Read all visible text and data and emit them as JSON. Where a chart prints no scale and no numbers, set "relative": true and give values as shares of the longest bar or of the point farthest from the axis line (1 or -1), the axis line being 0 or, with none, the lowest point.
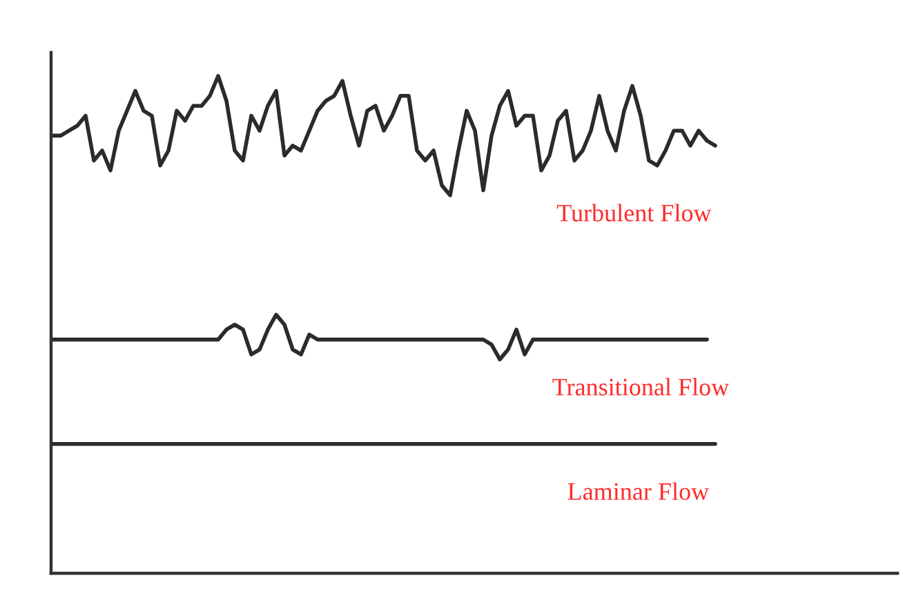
{
  "chart_data": {
    "type": "line",
    "relative": true,
    "marker": "none",
    "line_style": "solid",
    "categories": [
      null,
      null,
      null,
      null,
      null,
      null,
      null,
      null,
      null,
      null,
      null,
      null,
      null,
      null,
      null,
      null,
      null,
      null,
      null,
      null,
      null,
      null,
      null,
      null,
      null,
      null,
      null,
      null,
      null,
      null,
      null,
      null,
      null,
      null,
      null,
      null,
      null,
      null,
      null,
      null,
      null,
      null,
      null,
      null,
      null,
      null,
      null,
      null,
      null,
      null,
      null,
      null,
      null,
      null,
      null,
      null,
      null,
      null,
      null,
      null,
      null,
      null,
      null,
      null,
      null,
      null,
      null,
      null,
      null,
      null,
      null,
      null,
      null,
      null,
      null,
      null,
      null,
      null,
      null,
      null,
      null
    ],
    "series": [
      {
        "name": "Turbulent Flow",
        "color": "#2b2b2b",
        "values": [
          0.88,
          0.88,
          0.89,
          0.9,
          0.92,
          0.83,
          0.85,
          0.81,
          0.89,
          0.93,
          0.97,
          0.93,
          0.92,
          0.82,
          0.85,
          0.93,
          0.91,
          0.94,
          0.94,
          0.96,
          1.0,
          0.95,
          0.85,
          0.83,
          0.92,
          0.89,
          0.94,
          0.97,
          0.84,
          0.86,
          0.85,
          0.89,
          0.93,
          0.95,
          0.96,
          0.99,
          0.92,
          0.86,
          0.93,
          0.94,
          0.89,
          0.92,
          0.96,
          0.96,
          0.85,
          0.83,
          0.85,
          0.78,
          0.76,
          0.85,
          0.93,
          0.89,
          0.77,
          0.88,
          0.94,
          0.97,
          0.9,
          0.92,
          0.92,
          0.81,
          0.84,
          0.91,
          0.93,
          0.83,
          0.85,
          0.89,
          0.96,
          0.89,
          0.85,
          0.93,
          0.98,
          0.92,
          0.83,
          0.82,
          0.85,
          0.89,
          0.89,
          0.86,
          0.89,
          0.87,
          0.86
        ]
      },
      {
        "name": "Transitional Flow",
        "color": "#2b2b2b",
        "values": [
          0.47,
          0.47,
          0.47,
          0.47,
          0.47,
          0.47,
          0.47,
          0.47,
          0.47,
          0.47,
          0.47,
          0.47,
          0.47,
          0.47,
          0.47,
          0.47,
          0.47,
          0.47,
          0.47,
          0.47,
          0.47,
          0.49,
          0.5,
          0.49,
          0.44,
          0.45,
          0.49,
          0.52,
          0.5,
          0.45,
          0.44,
          0.48,
          0.47,
          0.47,
          0.47,
          0.47,
          0.47,
          0.47,
          0.47,
          0.47,
          0.47,
          0.47,
          0.47,
          0.47,
          0.47,
          0.47,
          0.47,
          0.47,
          0.47,
          0.47,
          0.47,
          0.47,
          0.47,
          0.46,
          0.43,
          0.45,
          0.49,
          0.44,
          0.47,
          0.47,
          0.47,
          0.47,
          0.47,
          0.47,
          0.47,
          0.47,
          0.47,
          0.47,
          0.47,
          0.47,
          0.47,
          0.47,
          0.47,
          0.47,
          0.47,
          0.47,
          0.47,
          0.47,
          0.47,
          0.47,
          null
        ]
      },
      {
        "name": "Laminar Flow",
        "color": "#2b2b2b",
        "values": [
          0.26,
          0.26,
          0.26,
          0.26,
          0.26,
          0.26,
          0.26,
          0.26,
          0.26,
          0.26,
          0.26,
          0.26,
          0.26,
          0.26,
          0.26,
          0.26,
          0.26,
          0.26,
          0.26,
          0.26,
          0.26,
          0.26,
          0.26,
          0.26,
          0.26,
          0.26,
          0.26,
          0.26,
          0.26,
          0.26,
          0.26,
          0.26,
          0.26,
          0.26,
          0.26,
          0.26,
          0.26,
          0.26,
          0.26,
          0.26,
          0.26,
          0.26,
          0.26,
          0.26,
          0.26,
          0.26,
          0.26,
          0.26,
          0.26,
          0.26,
          0.26,
          0.26,
          0.26,
          0.26,
          0.26,
          0.26,
          0.26,
          0.26,
          0.26,
          0.26,
          0.26,
          0.26,
          0.26,
          0.26,
          0.26,
          0.26,
          0.26,
          0.26,
          0.26,
          0.26,
          0.26,
          0.26,
          0.26,
          0.26,
          0.26,
          0.26,
          0.26,
          0.26,
          0.26,
          0.26,
          0.26
        ]
      }
    ]
  }
}
